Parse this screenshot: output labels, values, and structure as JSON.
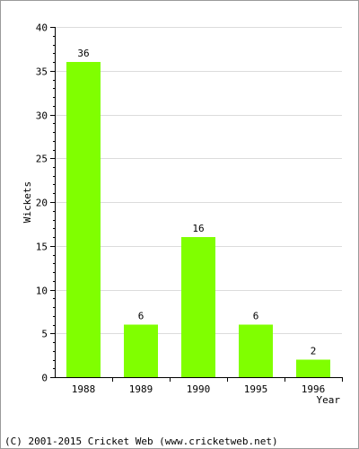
{
  "chart_data": {
    "type": "bar",
    "categories": [
      "1988",
      "1989",
      "1990",
      "1995",
      "1996"
    ],
    "values": [
      36,
      6,
      16,
      6,
      2
    ],
    "data_labels": [
      "36",
      "6",
      "16",
      "6",
      "2"
    ],
    "xlabel": "Year",
    "ylabel": "Wickets",
    "ylim": [
      0,
      40
    ],
    "yticks": [
      0,
      5,
      10,
      15,
      20,
      25,
      30,
      35,
      40
    ],
    "grid": true,
    "bar_color": "#80ff00"
  },
  "footer": "(C) 2001-2015 Cricket Web (www.cricketweb.net)"
}
